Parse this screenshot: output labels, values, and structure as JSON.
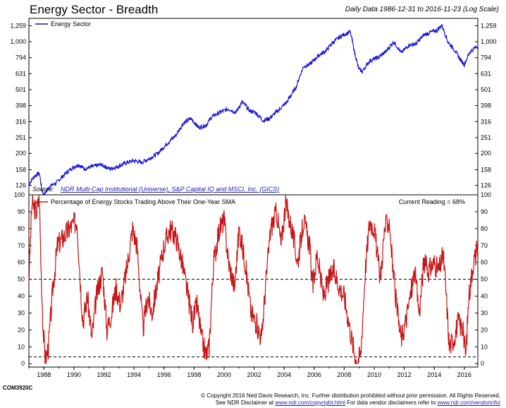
{
  "header": {
    "title": "Energy Sector - Breadth",
    "subtitle": "Daily Data 1986-12-31 to 2016-11-23 (Log Scale)"
  },
  "footer": {
    "code": "COM3920C",
    "copyright": "© Copyright 2016 Ned Davis Research, Inc. Further distribution prohibited without prior permission. All Rights Reserved.",
    "disclaimer_prefix": "See NDR Disclaimer at ",
    "disclaimer_link": "www.ndr.com/copyright.html",
    "vendor_prefix": "  For data vendor disclaimers refer to ",
    "vendor_link": "www.ndr.com/vendorinfo/"
  },
  "colors": {
    "top_series": "#1515d6",
    "bottom_series": "#c81414",
    "reference_lines": "#000000"
  },
  "chart_data": [
    {
      "type": "line",
      "scale": "log",
      "series": [
        {
          "name": "Energy Sector",
          "x": [
            1987.0,
            1987.4,
            1987.7,
            1987.85,
            1988.0,
            1988.4,
            1988.8,
            1989.3,
            1989.8,
            1990.3,
            1990.7,
            1991.2,
            1991.8,
            1992.4,
            1992.9,
            1993.5,
            1994.0,
            1994.5,
            1995.0,
            1995.6,
            1996.2,
            1996.8,
            1997.3,
            1997.8,
            1998.3,
            1998.8,
            1999.2,
            1999.7,
            2000.3,
            2000.8,
            2001.2,
            2001.7,
            2002.1,
            2002.6,
            2003.0,
            2003.6,
            2004.2,
            2004.8,
            2005.3,
            2005.7,
            2006.3,
            2006.8,
            2007.3,
            2007.9,
            2008.4,
            2008.7,
            2008.95,
            2009.2,
            2009.7,
            2010.3,
            2010.8,
            2011.3,
            2011.8,
            2012.3,
            2012.8,
            2013.3,
            2013.8,
            2014.2,
            2014.5,
            2014.9,
            2015.3,
            2015.7,
            2016.0,
            2016.4,
            2016.9
          ],
          "values": [
            128,
            145,
            150,
            120,
            110,
            125,
            130,
            145,
            160,
            170,
            160,
            165,
            170,
            160,
            165,
            175,
            180,
            175,
            185,
            200,
            230,
            260,
            310,
            330,
            290,
            300,
            340,
            360,
            380,
            360,
            420,
            370,
            360,
            320,
            330,
            370,
            420,
            520,
            700,
            720,
            820,
            880,
            1000,
            1100,
            1150,
            850,
            680,
            650,
            760,
            800,
            870,
            1000,
            850,
            950,
            970,
            1100,
            1150,
            1180,
            1270,
            1000,
            900,
            780,
            720,
            870,
            940
          ]
        }
      ],
      "yticks": [
        126,
        158,
        200,
        251,
        316,
        398,
        501,
        631,
        794,
        "1,000",
        "1,259"
      ],
      "ylim": [
        110,
        1400
      ],
      "source_label": "Source:",
      "source": "NDR Multi-Cap Institutional (Universe), S&P Capital IQ and MSCI, Inc. (GICS)"
    },
    {
      "type": "line",
      "series": [
        {
          "name": "Percentage of Energy Stocks Trading Above Their One-Year SMA",
          "x": [
            1987.0,
            1987.2,
            1987.5,
            1987.7,
            1987.8,
            1987.95,
            1988.1,
            1988.3,
            1988.6,
            1988.9,
            1989.3,
            1989.7,
            1990.2,
            1990.45,
            1990.6,
            1990.9,
            1991.2,
            1991.5,
            1991.9,
            1992.2,
            1992.5,
            1992.8,
            1993.1,
            1993.5,
            1993.9,
            1994.2,
            1994.6,
            1994.9,
            1995.2,
            1995.6,
            1996.0,
            1996.4,
            1996.8,
            1997.2,
            1997.6,
            1997.9,
            1998.2,
            1998.5,
            1998.8,
            1999.0,
            1999.3,
            1999.7,
            2000.0,
            2000.3,
            2000.7,
            2001.0,
            2001.4,
            2001.8,
            2002.1,
            2002.5,
            2002.8,
            2003.1,
            2003.5,
            2003.8,
            2004.1,
            2004.5,
            2004.9,
            2005.3,
            2005.7,
            2005.9,
            2006.2,
            2006.6,
            2007.0,
            2007.3,
            2007.7,
            2008.0,
            2008.3,
            2008.6,
            2008.8,
            2009.1,
            2009.4,
            2009.7,
            2010.0,
            2010.4,
            2010.7,
            2011.0,
            2011.3,
            2011.6,
            2011.8,
            2012.1,
            2012.4,
            2012.7,
            2013.0,
            2013.3,
            2013.6,
            2014.0,
            2014.3,
            2014.6,
            2014.8,
            2015.0,
            2015.3,
            2015.6,
            2015.9,
            2016.1,
            2016.3,
            2016.6,
            2016.9
          ],
          "values": [
            50,
            95,
            90,
            98,
            60,
            20,
            2,
            10,
            45,
            70,
            75,
            80,
            85,
            45,
            25,
            40,
            15,
            40,
            55,
            20,
            30,
            45,
            35,
            55,
            80,
            70,
            20,
            40,
            30,
            50,
            70,
            80,
            75,
            60,
            40,
            25,
            35,
            15,
            5,
            10,
            60,
            80,
            85,
            60,
            45,
            80,
            60,
            30,
            25,
            15,
            50,
            80,
            90,
            70,
            95,
            80,
            60,
            85,
            70,
            45,
            65,
            40,
            50,
            55,
            45,
            40,
            25,
            10,
            2,
            5,
            55,
            85,
            80,
            50,
            80,
            85,
            50,
            25,
            15,
            25,
            40,
            55,
            30,
            60,
            55,
            60,
            55,
            65,
            40,
            10,
            15,
            25,
            20,
            5,
            40,
            60,
            68
          ]
        }
      ],
      "yticks": [
        0,
        10,
        20,
        30,
        40,
        50,
        60,
        70,
        80,
        90,
        100
      ],
      "ylim": [
        -2,
        100
      ],
      "reference_lines": [
        50,
        4
      ],
      "annotation": "Current Reading = 68%"
    }
  ],
  "x_axis": {
    "ticks": [
      1988,
      1990,
      1992,
      1994,
      1996,
      1998,
      2000,
      2002,
      2004,
      2006,
      2008,
      2010,
      2012,
      2014,
      2016
    ],
    "range": [
      1987.0,
      2016.9
    ]
  }
}
